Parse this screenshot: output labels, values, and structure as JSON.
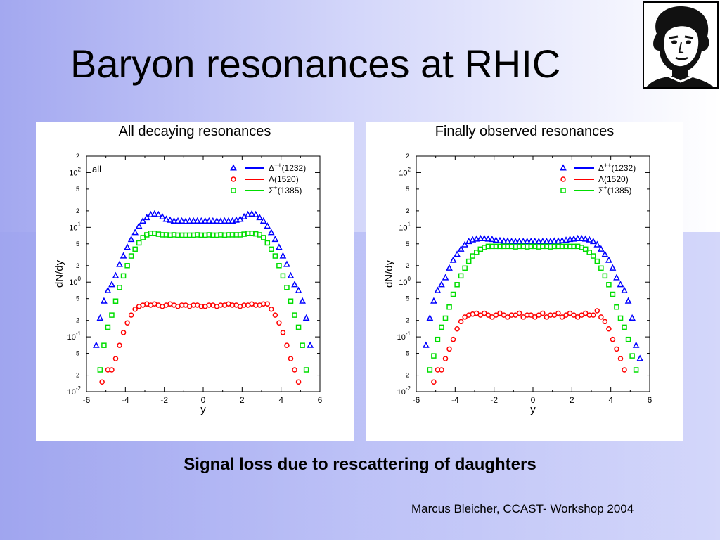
{
  "slide": {
    "title": "Baryon resonances at RHIC",
    "caption": "Signal loss due to rescattering of daughters",
    "footer": "Marcus Bleicher, CCAST- Workshop 2004"
  },
  "colors": {
    "delta": "#0000ff",
    "lambda": "#ff0000",
    "sigma": "#00dd00"
  },
  "chart_data": [
    {
      "type": "scatter",
      "title": "All decaying resonances",
      "annotation": "all",
      "xlabel": "y",
      "ylabel": "dN/dy",
      "xlim": [
        -6,
        6
      ],
      "ylim": [
        0.01,
        200
      ],
      "yscale": "log",
      "xticks": [
        "-6",
        "-4",
        "-2",
        "0",
        "2",
        "4",
        "6"
      ],
      "legend_position": "top-right",
      "series": [
        {
          "name": "Δ++(1232)",
          "marker": "triangle",
          "x": [
            -5.5,
            -5.3,
            -5.1,
            -4.9,
            -4.7,
            -4.5,
            -4.3,
            -4.1,
            -3.9,
            -3.7,
            -3.5,
            -3.3,
            -3.1,
            -2.9,
            -2.7,
            -2.5,
            -2.3,
            -2.1,
            -1.9,
            -1.7,
            -1.5,
            -1.3,
            -1.1,
            -0.9,
            -0.7,
            -0.5,
            -0.3,
            -0.1,
            0.1,
            0.3,
            0.5,
            0.7,
            0.9,
            1.1,
            1.3,
            1.5,
            1.7,
            1.9,
            2.1,
            2.3,
            2.5,
            2.7,
            2.9,
            3.1,
            3.3,
            3.5,
            3.7,
            3.9,
            4.1,
            4.3,
            4.5,
            4.7,
            4.9,
            5.1,
            5.3,
            5.5
          ],
          "y": [
            0.07,
            0.22,
            0.45,
            0.7,
            0.9,
            1.3,
            2.1,
            3.0,
            4.3,
            6.0,
            8.0,
            10.5,
            13.0,
            15.0,
            17.0,
            17.5,
            17.0,
            15.5,
            14.0,
            13.5,
            13.0,
            13.0,
            13.0,
            12.8,
            13.0,
            13.0,
            13.0,
            13.0,
            13.0,
            13.0,
            13.0,
            13.0,
            12.8,
            13.0,
            13.0,
            13.0,
            13.5,
            14.0,
            15.5,
            17.0,
            17.5,
            17.0,
            15.0,
            13.0,
            10.5,
            8.0,
            6.0,
            4.3,
            3.0,
            2.1,
            1.3,
            0.9,
            0.7,
            0.45,
            0.22,
            0.07
          ]
        },
        {
          "name": "Λ(1520)",
          "marker": "circle",
          "x": [
            -5.2,
            -4.9,
            -4.7,
            -4.5,
            -4.3,
            -4.1,
            -3.9,
            -3.7,
            -3.5,
            -3.3,
            -3.1,
            -2.9,
            -2.7,
            -2.5,
            -2.3,
            -2.1,
            -1.9,
            -1.7,
            -1.5,
            -1.3,
            -1.1,
            -0.9,
            -0.7,
            -0.5,
            -0.3,
            -0.1,
            0.1,
            0.3,
            0.5,
            0.7,
            0.9,
            1.1,
            1.3,
            1.5,
            1.7,
            1.9,
            2.1,
            2.3,
            2.5,
            2.7,
            2.9,
            3.1,
            3.3,
            3.5,
            3.7,
            3.9,
            4.1,
            4.3,
            4.5,
            4.7,
            4.9
          ],
          "y": [
            0.015,
            0.025,
            0.025,
            0.04,
            0.07,
            0.12,
            0.18,
            0.25,
            0.32,
            0.36,
            0.38,
            0.4,
            0.38,
            0.4,
            0.38,
            0.36,
            0.38,
            0.4,
            0.38,
            0.36,
            0.38,
            0.38,
            0.36,
            0.38,
            0.38,
            0.36,
            0.36,
            0.38,
            0.38,
            0.36,
            0.38,
            0.38,
            0.4,
            0.38,
            0.38,
            0.36,
            0.38,
            0.38,
            0.4,
            0.38,
            0.38,
            0.4,
            0.4,
            0.32,
            0.25,
            0.18,
            0.12,
            0.07,
            0.04,
            0.025,
            0.015
          ]
        },
        {
          "name": "Σ+(1385)",
          "marker": "square",
          "x": [
            -5.3,
            -5.1,
            -4.9,
            -4.7,
            -4.5,
            -4.3,
            -4.1,
            -3.9,
            -3.7,
            -3.5,
            -3.3,
            -3.1,
            -2.9,
            -2.7,
            -2.5,
            -2.3,
            -2.1,
            -1.9,
            -1.7,
            -1.5,
            -1.3,
            -1.1,
            -0.9,
            -0.7,
            -0.5,
            -0.3,
            -0.1,
            0.1,
            0.3,
            0.5,
            0.7,
            0.9,
            1.1,
            1.3,
            1.5,
            1.7,
            1.9,
            2.1,
            2.3,
            2.5,
            2.7,
            2.9,
            3.1,
            3.3,
            3.5,
            3.7,
            3.9,
            4.1,
            4.3,
            4.5,
            4.7,
            4.9,
            5.1,
            5.3
          ],
          "y": [
            0.025,
            0.07,
            0.15,
            0.25,
            0.45,
            0.8,
            1.3,
            2.0,
            3.0,
            4.0,
            5.2,
            6.5,
            7.3,
            7.8,
            7.8,
            7.5,
            7.3,
            7.3,
            7.2,
            7.3,
            7.2,
            7.2,
            7.2,
            7.2,
            7.2,
            7.3,
            7.2,
            7.2,
            7.3,
            7.2,
            7.2,
            7.3,
            7.2,
            7.3,
            7.3,
            7.3,
            7.3,
            7.5,
            7.8,
            7.8,
            7.6,
            7.3,
            6.5,
            5.2,
            4.0,
            3.0,
            2.0,
            1.3,
            0.8,
            0.45,
            0.25,
            0.15,
            0.07,
            0.025
          ]
        }
      ]
    },
    {
      "type": "scatter",
      "title": "Finally observed resonances",
      "xlabel": "y",
      "ylabel": "dN/dy",
      "xlim": [
        -6,
        6
      ],
      "ylim": [
        0.01,
        200
      ],
      "yscale": "log",
      "xticks": [
        "-6",
        "-4",
        "-2",
        "0",
        "2",
        "4",
        "6"
      ],
      "legend_position": "top-right",
      "series": [
        {
          "name": "Δ++(1232)",
          "marker": "triangle",
          "x": [
            -5.5,
            -5.3,
            -5.1,
            -4.9,
            -4.7,
            -4.5,
            -4.3,
            -4.1,
            -3.9,
            -3.7,
            -3.5,
            -3.3,
            -3.1,
            -2.9,
            -2.7,
            -2.5,
            -2.3,
            -2.1,
            -1.9,
            -1.7,
            -1.5,
            -1.3,
            -1.1,
            -0.9,
            -0.7,
            -0.5,
            -0.3,
            -0.1,
            0.1,
            0.3,
            0.5,
            0.7,
            0.9,
            1.1,
            1.3,
            1.5,
            1.7,
            1.9,
            2.1,
            2.3,
            2.5,
            2.7,
            2.9,
            3.1,
            3.3,
            3.5,
            3.7,
            3.9,
            4.1,
            4.3,
            4.5,
            4.7,
            4.9,
            5.1,
            5.3,
            5.5
          ],
          "y": [
            0.07,
            0.22,
            0.45,
            0.7,
            0.9,
            1.2,
            1.8,
            2.5,
            3.2,
            4.0,
            4.8,
            5.5,
            5.9,
            6.1,
            6.2,
            6.2,
            6.1,
            6.0,
            5.8,
            5.7,
            5.6,
            5.6,
            5.5,
            5.5,
            5.5,
            5.5,
            5.5,
            5.5,
            5.5,
            5.5,
            5.5,
            5.5,
            5.5,
            5.6,
            5.6,
            5.7,
            5.8,
            6.0,
            6.1,
            6.2,
            6.2,
            6.1,
            5.9,
            5.5,
            4.8,
            4.0,
            3.2,
            2.5,
            1.8,
            1.2,
            0.9,
            0.7,
            0.45,
            0.22,
            0.07,
            0.04
          ]
        },
        {
          "name": "Λ(1520)",
          "marker": "circle",
          "x": [
            -5.1,
            -4.9,
            -4.7,
            -4.5,
            -4.3,
            -4.1,
            -3.9,
            -3.7,
            -3.5,
            -3.3,
            -3.1,
            -2.9,
            -2.7,
            -2.5,
            -2.3,
            -2.1,
            -1.9,
            -1.7,
            -1.5,
            -1.3,
            -1.1,
            -0.9,
            -0.7,
            -0.5,
            -0.3,
            -0.1,
            0.1,
            0.3,
            0.5,
            0.7,
            0.9,
            1.1,
            1.3,
            1.5,
            1.7,
            1.9,
            2.1,
            2.3,
            2.5,
            2.7,
            2.9,
            3.1,
            3.3,
            3.5,
            3.7,
            3.9,
            4.1,
            4.3,
            4.5,
            4.7
          ],
          "y": [
            0.015,
            0.025,
            0.025,
            0.04,
            0.06,
            0.09,
            0.14,
            0.19,
            0.23,
            0.25,
            0.26,
            0.27,
            0.25,
            0.27,
            0.25,
            0.23,
            0.25,
            0.27,
            0.25,
            0.23,
            0.25,
            0.25,
            0.27,
            0.23,
            0.25,
            0.25,
            0.23,
            0.25,
            0.27,
            0.23,
            0.25,
            0.25,
            0.27,
            0.23,
            0.25,
            0.27,
            0.25,
            0.23,
            0.25,
            0.27,
            0.25,
            0.25,
            0.3,
            0.23,
            0.19,
            0.14,
            0.09,
            0.06,
            0.04,
            0.025
          ]
        },
        {
          "name": "Σ+(1385)",
          "marker": "square",
          "x": [
            -5.3,
            -5.1,
            -4.9,
            -4.7,
            -4.5,
            -4.3,
            -4.1,
            -3.9,
            -3.7,
            -3.5,
            -3.3,
            -3.1,
            -2.9,
            -2.7,
            -2.5,
            -2.3,
            -2.1,
            -1.9,
            -1.7,
            -1.5,
            -1.3,
            -1.1,
            -0.9,
            -0.7,
            -0.5,
            -0.3,
            -0.1,
            0.1,
            0.3,
            0.5,
            0.7,
            0.9,
            1.1,
            1.3,
            1.5,
            1.7,
            1.9,
            2.1,
            2.3,
            2.5,
            2.7,
            2.9,
            3.1,
            3.3,
            3.5,
            3.7,
            3.9,
            4.1,
            4.3,
            4.5,
            4.7,
            4.9,
            5.1,
            5.3
          ],
          "y": [
            0.025,
            0.045,
            0.09,
            0.15,
            0.22,
            0.35,
            0.6,
            0.9,
            1.3,
            1.8,
            2.4,
            3.0,
            3.5,
            4.0,
            4.3,
            4.5,
            4.5,
            4.5,
            4.5,
            4.5,
            4.5,
            4.5,
            4.4,
            4.5,
            4.5,
            4.4,
            4.5,
            4.5,
            4.4,
            4.5,
            4.5,
            4.4,
            4.5,
            4.5,
            4.5,
            4.5,
            4.5,
            4.5,
            4.5,
            4.3,
            4.0,
            3.5,
            3.0,
            2.4,
            1.8,
            1.3,
            0.9,
            0.6,
            0.35,
            0.22,
            0.15,
            0.09,
            0.045,
            0.025
          ]
        }
      ]
    }
  ]
}
